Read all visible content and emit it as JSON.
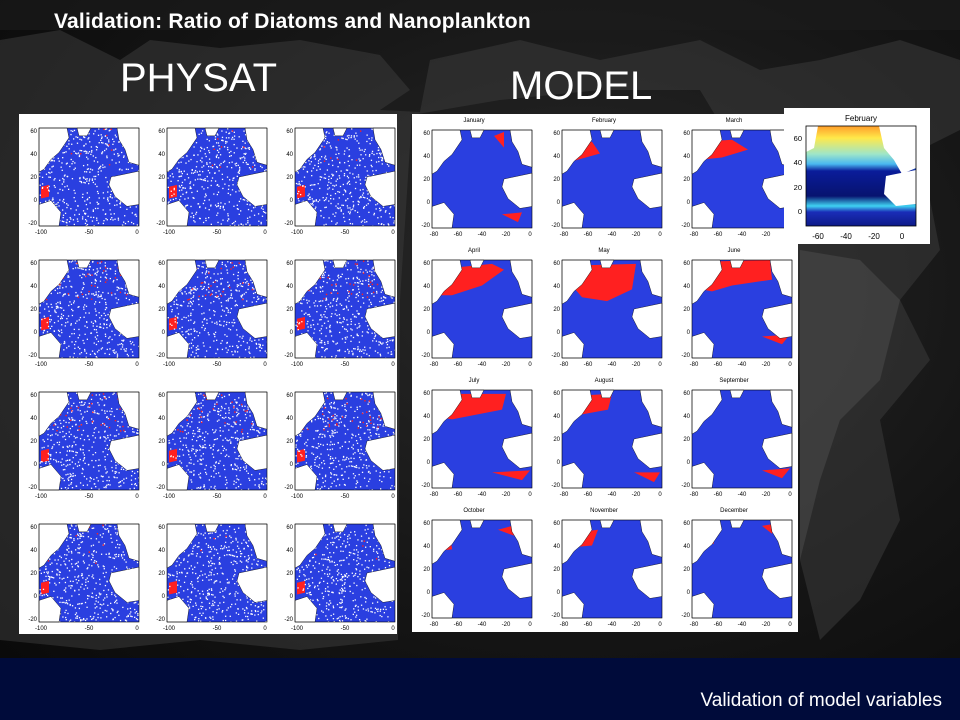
{
  "slide": {
    "title": "Validation: Ratio of Diatoms and Nanoplankton",
    "physat_label": "PHYSAT",
    "model_label": "MODEL",
    "footer": "Validation of model variables"
  },
  "physat_axes": {
    "x_ticks": [
      "-100",
      "-50",
      "0"
    ],
    "y_ticks": [
      "60",
      "40",
      "20",
      "0",
      "-20"
    ]
  },
  "model_axes": {
    "x_ticks": [
      "-80",
      "-60",
      "-40",
      "-20",
      "0"
    ],
    "y_ticks": [
      "60",
      "40",
      "20",
      "0",
      "-20"
    ]
  },
  "model_months": [
    "January",
    "February",
    "March",
    "April",
    "May",
    "June",
    "July",
    "August",
    "September",
    "October",
    "November",
    "December"
  ],
  "inset": {
    "title": "February",
    "y_ticks": [
      "60",
      "40",
      "20",
      "0"
    ],
    "x_ticks": [
      "-60",
      "-40",
      "-20",
      "0"
    ]
  },
  "colors": {
    "ocean_blue": "#2a3fe0",
    "diatom_red": "#ff2020",
    "land_white": "#ffffff",
    "footer_bg": "#000b3a"
  }
}
